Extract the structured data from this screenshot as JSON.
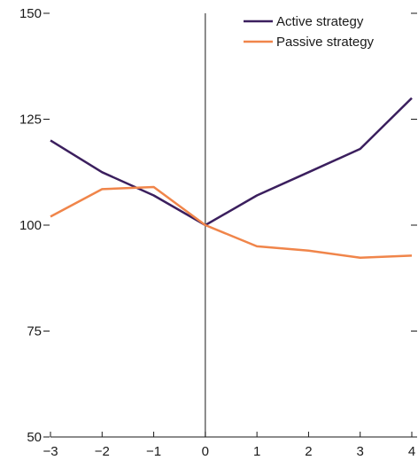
{
  "chart_data": {
    "type": "line",
    "title": "",
    "xlabel": "",
    "ylabel": "",
    "x": [
      -3,
      -2,
      -1,
      0,
      1,
      2,
      3,
      4
    ],
    "x_tick_labels": [
      "−3",
      "−2",
      "−1",
      "0",
      "1",
      "2",
      "3",
      "4"
    ],
    "y_ticks": [
      50,
      75,
      100,
      125,
      150
    ],
    "y_tick_labels": [
      "50",
      "75",
      "100",
      "125",
      "150"
    ],
    "xlim": [
      -3,
      4
    ],
    "ylim": [
      50,
      150
    ],
    "grid": false,
    "legend_position": "top-right",
    "series": [
      {
        "name": "Active strategy",
        "color": "#3b1f5e",
        "values": [
          120,
          112.5,
          107,
          100,
          107,
          112.5,
          118,
          130
        ]
      },
      {
        "name": "Passive strategy",
        "color": "#f0854a",
        "values": [
          102,
          108.5,
          109,
          100,
          95,
          94,
          92.3,
          92.8
        ]
      }
    ]
  }
}
